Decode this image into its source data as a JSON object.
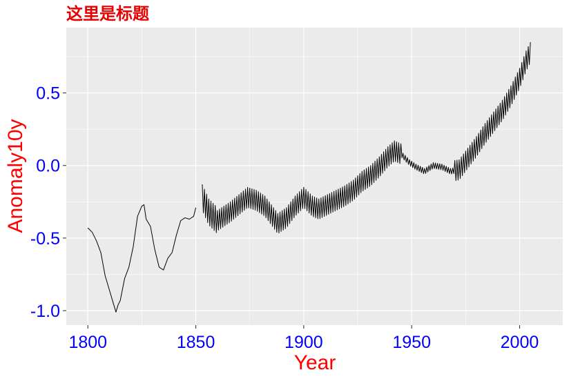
{
  "chart_data": {
    "type": "line",
    "title": "这里是标题",
    "xlabel": "Year",
    "ylabel": "Anomaly10y",
    "xlim": [
      1790,
      2020
    ],
    "ylim": [
      -1.1,
      0.95
    ],
    "x_ticks": [
      1800,
      1850,
      1900,
      1950,
      2000
    ],
    "x_tick_labels": [
      "1800",
      "1850",
      "1900",
      "1950",
      "2000"
    ],
    "y_ticks": [
      0.5,
      0.0,
      -0.5,
      -1.0
    ],
    "y_tick_labels": [
      "0.5",
      "0.0",
      "-0.5",
      "-1.0"
    ],
    "grid": true,
    "background": "#ebebeb",
    "line_color": "#000000",
    "colors": {
      "title": "#e60000",
      "axis_title": "#ff0000",
      "tick_labels": "#0000ff"
    },
    "series": [
      {
        "segments": [
          {
            "x": [
              1800,
              1802,
              1804,
              1806,
              1808,
              1810,
              1812,
              1813,
              1814,
              1815,
              1817,
              1819,
              1821,
              1823,
              1825,
              1826,
              1827,
              1829,
              1831,
              1833,
              1835,
              1837,
              1839,
              1841,
              1843,
              1845,
              1847,
              1849,
              1850
            ],
            "y": [
              -0.43,
              -0.46,
              -0.52,
              -0.6,
              -0.76,
              -0.86,
              -0.96,
              -1.01,
              -0.96,
              -0.93,
              -0.78,
              -0.7,
              -0.56,
              -0.35,
              -0.28,
              -0.27,
              -0.37,
              -0.42,
              -0.58,
              -0.7,
              -0.72,
              -0.64,
              -0.6,
              -0.48,
              -0.38,
              -0.36,
              -0.37,
              -0.35,
              -0.29
            ]
          },
          {
            "oscillating": true,
            "x": [
              1853,
              1856,
              1860,
              1863,
              1866,
              1870,
              1874,
              1878,
              1882,
              1886,
              1888,
              1892,
              1896,
              1900,
              1904,
              1907,
              1911,
              1915,
              1919,
              1923,
              1927,
              1931,
              1935,
              1939,
              1942,
              1945,
              1949,
              1952,
              1956,
              1960,
              1964,
              1968,
              1972,
              1976,
              1980,
              1984,
              1988,
              1992,
              1996,
              2000,
              2003,
              2005
            ],
            "y": [
              -0.22,
              -0.32,
              -0.38,
              -0.35,
              -0.32,
              -0.27,
              -0.22,
              -0.24,
              -0.28,
              -0.36,
              -0.4,
              -0.36,
              -0.28,
              -0.22,
              -0.28,
              -0.3,
              -0.27,
              -0.24,
              -0.21,
              -0.17,
              -0.11,
              -0.07,
              -0.01,
              0.06,
              0.1,
              0.08,
              0.02,
              -0.01,
              -0.04,
              0.0,
              -0.01,
              -0.04,
              -0.03,
              0.05,
              0.13,
              0.22,
              0.3,
              0.38,
              0.48,
              0.6,
              0.72,
              0.78
            ]
          }
        ]
      }
    ]
  }
}
